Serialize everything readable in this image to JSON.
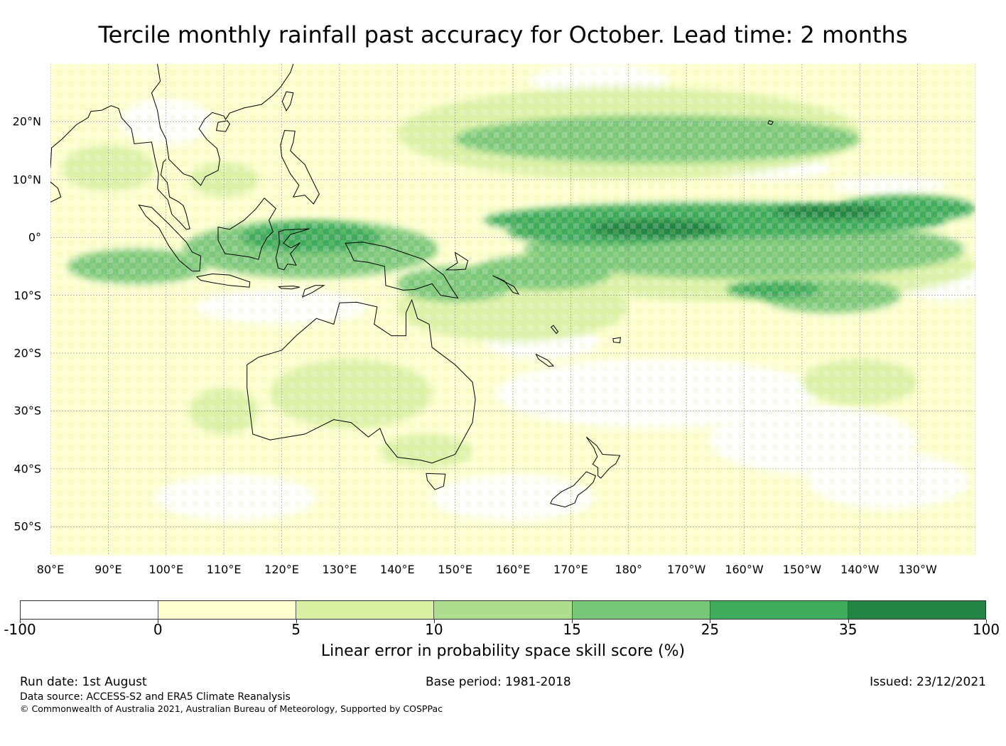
{
  "title": "Tercile monthly rainfall past accuracy for October. Lead time: 2 months",
  "map": {
    "lon_range": [
      80,
      240
    ],
    "lat_range": [
      -55,
      30
    ],
    "lat_labels": [
      {
        "lat": 20,
        "text": "20°N"
      },
      {
        "lat": 10,
        "text": "10°N"
      },
      {
        "lat": 0,
        "text": "0°"
      },
      {
        "lat": -10,
        "text": "10°S"
      },
      {
        "lat": -20,
        "text": "20°S"
      },
      {
        "lat": -30,
        "text": "30°S"
      },
      {
        "lat": -40,
        "text": "40°S"
      },
      {
        "lat": -50,
        "text": "50°S"
      }
    ],
    "lon_labels": [
      {
        "lon": 80,
        "text": "80°E"
      },
      {
        "lon": 90,
        "text": "90°E"
      },
      {
        "lon": 100,
        "text": "100°E"
      },
      {
        "lon": 110,
        "text": "110°E"
      },
      {
        "lon": 120,
        "text": "120°E"
      },
      {
        "lon": 130,
        "text": "130°E"
      },
      {
        "lon": 140,
        "text": "140°E"
      },
      {
        "lon": 150,
        "text": "150°E"
      },
      {
        "lon": 160,
        "text": "160°E"
      },
      {
        "lon": 170,
        "text": "170°E"
      },
      {
        "lon": 180,
        "text": "180°"
      },
      {
        "lon": 190,
        "text": "170°W"
      },
      {
        "lon": 200,
        "text": "160°W"
      },
      {
        "lon": 210,
        "text": "150°W"
      },
      {
        "lon": 220,
        "text": "140°W"
      },
      {
        "lon": 230,
        "text": "130°W"
      }
    ]
  },
  "colorbar": {
    "ticks": [
      "-100",
      "0",
      "5",
      "10",
      "15",
      "25",
      "35",
      "100"
    ],
    "colors": [
      "#ffffff",
      "#fefed0",
      "#d9f0a3",
      "#addd8e",
      "#78c679",
      "#41ab5d",
      "#238443"
    ],
    "label": "Linear error in probability space skill score (%)"
  },
  "footer": {
    "run_date": "Run date: 1st August",
    "base_period": "Base period: 1981-2018",
    "issued": "Issued: 23/12/2021",
    "data_source": "Data source: ACCESS-S2 and ERA5 Climate Reanalysis",
    "copyright": "© Commonwealth of Australia 2021, Australian Bureau of Meteorology, Supported by COSPPac"
  }
}
